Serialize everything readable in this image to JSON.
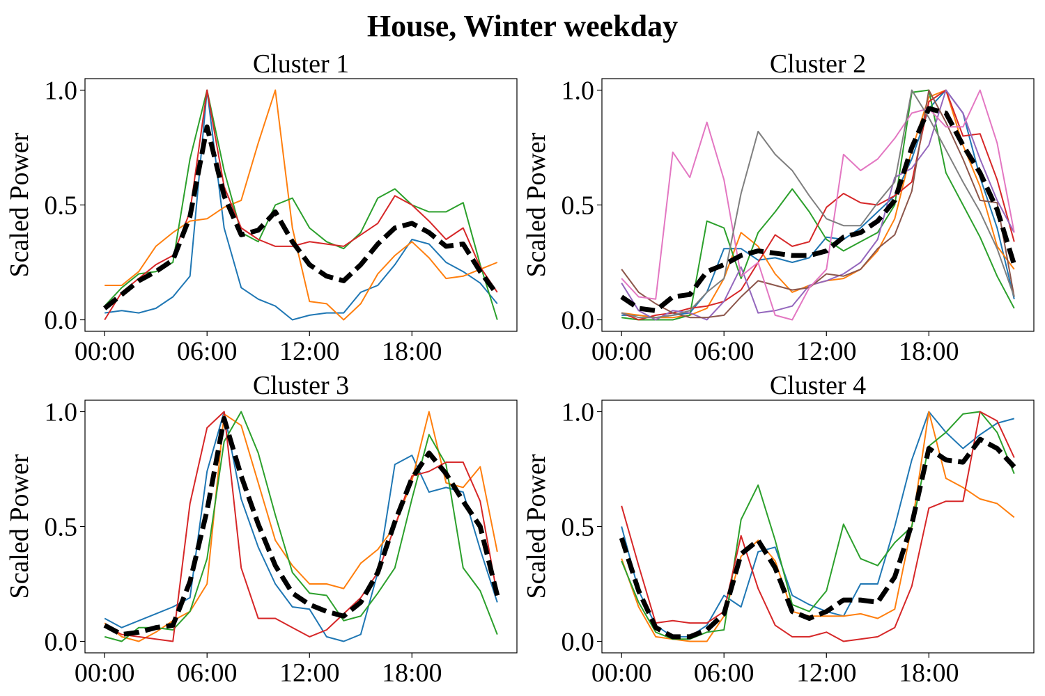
{
  "suptitle": "House, Winter weekday",
  "colors": {
    "series": [
      "#1f77b4",
      "#ff7f0e",
      "#2ca02c",
      "#d62728",
      "#9467bd",
      "#8c564b",
      "#e377c2",
      "#7f7f7f"
    ],
    "mean": "#000000"
  },
  "chart_data": [
    {
      "type": "line",
      "title": "Cluster 1",
      "ylabel": "Scaled Power",
      "xlabel": "",
      "x_tick_labels": [
        "00:00",
        "06:00",
        "12:00",
        "18:00"
      ],
      "x_tick_hours": [
        0,
        6,
        12,
        18
      ],
      "y_ticks": [
        "0.0",
        "0.5",
        "1.0"
      ],
      "xlim": [
        -1.15,
        24.15
      ],
      "ylim": [
        -0.05,
        1.05
      ],
      "x": [
        0,
        1,
        2,
        3,
        4,
        5,
        6,
        7,
        8,
        9,
        10,
        11,
        12,
        13,
        14,
        15,
        16,
        17,
        18,
        19,
        20,
        21,
        22,
        23
      ],
      "series": [
        {
          "values": [
            0.03,
            0.04,
            0.03,
            0.05,
            0.1,
            0.19,
            1.0,
            0.4,
            0.14,
            0.09,
            0.06,
            0.0,
            0.02,
            0.03,
            0.03,
            0.12,
            0.15,
            0.24,
            0.35,
            0.33,
            0.25,
            0.21,
            0.16,
            0.07
          ]
        },
        {
          "values": [
            0.15,
            0.15,
            0.21,
            0.32,
            0.38,
            0.43,
            0.44,
            0.49,
            0.52,
            0.77,
            1.0,
            0.4,
            0.08,
            0.07,
            0.0,
            0.07,
            0.2,
            0.28,
            0.34,
            0.27,
            0.18,
            0.19,
            0.22,
            0.25
          ]
        },
        {
          "values": [
            0.06,
            0.14,
            0.2,
            0.21,
            0.25,
            0.7,
            1.0,
            0.65,
            0.38,
            0.34,
            0.5,
            0.53,
            0.4,
            0.34,
            0.31,
            0.38,
            0.53,
            0.57,
            0.5,
            0.47,
            0.47,
            0.51,
            0.24,
            0.0
          ]
        },
        {
          "values": [
            0.0,
            0.12,
            0.18,
            0.24,
            0.28,
            0.47,
            1.0,
            0.58,
            0.4,
            0.35,
            0.32,
            0.32,
            0.34,
            0.33,
            0.32,
            0.37,
            0.42,
            0.54,
            0.5,
            0.43,
            0.35,
            0.4,
            0.23,
            0.12
          ]
        }
      ],
      "mean": [
        0.05,
        0.11,
        0.17,
        0.21,
        0.26,
        0.45,
        0.84,
        0.54,
        0.37,
        0.39,
        0.47,
        0.34,
        0.24,
        0.19,
        0.17,
        0.24,
        0.33,
        0.4,
        0.42,
        0.38,
        0.32,
        0.33,
        0.21,
        0.11
      ]
    },
    {
      "type": "line",
      "title": "Cluster 2",
      "ylabel": "Scaled Power",
      "xlabel": "",
      "x_tick_labels": [
        "00:00",
        "06:00",
        "12:00",
        "18:00"
      ],
      "x_tick_hours": [
        0,
        6,
        12,
        18
      ],
      "y_ticks": [
        "0.0",
        "0.5",
        "1.0"
      ],
      "xlim": [
        -1.15,
        24.15
      ],
      "ylim": [
        -0.05,
        1.05
      ],
      "x": [
        0,
        1,
        2,
        3,
        4,
        5,
        6,
        7,
        8,
        9,
        10,
        11,
        12,
        13,
        14,
        15,
        16,
        17,
        18,
        19,
        20,
        21,
        22,
        23
      ],
      "series": [
        {
          "values": [
            0.02,
            0.02,
            0.01,
            0.02,
            0.03,
            0.12,
            0.31,
            0.31,
            0.26,
            0.27,
            0.25,
            0.27,
            0.36,
            0.35,
            0.4,
            0.47,
            0.54,
            0.7,
            0.92,
            1.0,
            0.9,
            0.62,
            0.4,
            0.09
          ]
        },
        {
          "values": [
            0.03,
            0.02,
            0.01,
            0.01,
            0.02,
            0.05,
            0.18,
            0.38,
            0.32,
            0.2,
            0.12,
            0.15,
            0.17,
            0.18,
            0.22,
            0.3,
            0.44,
            0.74,
            0.97,
            1.0,
            0.76,
            0.58,
            0.32,
            0.22
          ]
        },
        {
          "values": [
            0.01,
            0.0,
            0.0,
            0.0,
            0.02,
            0.43,
            0.4,
            0.18,
            0.38,
            0.47,
            0.57,
            0.47,
            0.35,
            0.3,
            0.34,
            0.38,
            0.5,
            0.99,
            1.0,
            0.64,
            0.5,
            0.36,
            0.19,
            0.05
          ]
        },
        {
          "values": [
            0.03,
            0.0,
            0.02,
            0.03,
            0.05,
            0.06,
            0.08,
            0.13,
            0.25,
            0.37,
            0.32,
            0.34,
            0.49,
            0.55,
            0.51,
            0.5,
            0.54,
            0.6,
            0.95,
            1.0,
            0.8,
            0.81,
            0.61,
            0.34
          ]
        },
        {
          "values": [
            0.16,
            0.04,
            0.0,
            0.04,
            0.03,
            0.0,
            0.08,
            0.23,
            0.03,
            0.04,
            0.06,
            0.15,
            0.17,
            0.2,
            0.25,
            0.35,
            0.62,
            0.66,
            0.76,
            1.0,
            0.9,
            0.7,
            0.52,
            0.38
          ]
        },
        {
          "values": [
            0.22,
            0.12,
            0.07,
            0.03,
            0.01,
            0.01,
            0.02,
            0.1,
            0.17,
            0.15,
            0.13,
            0.14,
            0.2,
            0.19,
            0.22,
            0.31,
            0.37,
            0.56,
            1.0,
            0.86,
            0.7,
            0.52,
            0.51,
            0.1
          ]
        },
        {
          "values": [
            0.18,
            0.1,
            0.09,
            0.73,
            0.62,
            0.86,
            0.61,
            0.19,
            0.25,
            0.02,
            0.0,
            0.14,
            0.22,
            0.72,
            0.65,
            0.7,
            0.79,
            0.9,
            0.92,
            0.84,
            0.84,
            1.0,
            0.77,
            0.38
          ]
        },
        {
          "values": [
            0.03,
            0.01,
            0.01,
            0.02,
            0.04,
            0.12,
            0.18,
            0.55,
            0.82,
            0.72,
            0.65,
            0.54,
            0.44,
            0.41,
            0.41,
            0.51,
            0.6,
            1.0,
            0.88,
            0.74,
            0.6,
            0.47,
            0.31,
            0.1
          ]
        }
      ],
      "mean": [
        0.1,
        0.05,
        0.04,
        0.1,
        0.11,
        0.21,
        0.24,
        0.28,
        0.3,
        0.29,
        0.28,
        0.28,
        0.3,
        0.36,
        0.38,
        0.43,
        0.52,
        0.75,
        0.92,
        0.9,
        0.76,
        0.64,
        0.48,
        0.24
      ]
    },
    {
      "type": "line",
      "title": "Cluster 3",
      "ylabel": "Scaled Power",
      "xlabel": "",
      "x_tick_labels": [
        "00:00",
        "06:00",
        "12:00",
        "18:00"
      ],
      "x_tick_hours": [
        0,
        6,
        12,
        18
      ],
      "y_ticks": [
        "0.0",
        "0.5",
        "1.0"
      ],
      "xlim": [
        -1.15,
        24.15
      ],
      "ylim": [
        -0.05,
        1.05
      ],
      "x": [
        0,
        1,
        2,
        3,
        4,
        5,
        6,
        7,
        8,
        9,
        10,
        11,
        12,
        13,
        14,
        15,
        16,
        17,
        18,
        19,
        20,
        21,
        22,
        23
      ],
      "series": [
        {
          "values": [
            0.1,
            0.06,
            0.09,
            0.12,
            0.15,
            0.19,
            0.74,
            1.0,
            0.62,
            0.41,
            0.25,
            0.15,
            0.14,
            0.02,
            0.0,
            0.03,
            0.3,
            0.77,
            0.81,
            0.65,
            0.67,
            0.65,
            0.4,
            0.17
          ]
        },
        {
          "values": [
            0.08,
            0.02,
            0.0,
            0.04,
            0.09,
            0.13,
            0.25,
            0.99,
            0.94,
            0.69,
            0.44,
            0.33,
            0.25,
            0.25,
            0.23,
            0.34,
            0.4,
            0.5,
            0.7,
            1.0,
            0.69,
            0.67,
            0.76,
            0.39
          ]
        },
        {
          "values": [
            0.02,
            0.0,
            0.06,
            0.06,
            0.05,
            0.13,
            0.36,
            0.87,
            1.0,
            0.82,
            0.55,
            0.3,
            0.21,
            0.2,
            0.09,
            0.11,
            0.21,
            0.32,
            0.62,
            0.9,
            0.77,
            0.32,
            0.22,
            0.03
          ]
        },
        {
          "values": [
            0.07,
            0.03,
            0.02,
            0.01,
            0.0,
            0.6,
            0.93,
            1.0,
            0.32,
            0.1,
            0.1,
            0.06,
            0.02,
            0.05,
            0.12,
            0.19,
            0.3,
            0.5,
            0.72,
            0.74,
            0.78,
            0.78,
            0.61,
            0.2
          ]
        }
      ],
      "mean": [
        0.07,
        0.03,
        0.04,
        0.06,
        0.07,
        0.26,
        0.57,
        0.97,
        0.72,
        0.51,
        0.33,
        0.21,
        0.16,
        0.13,
        0.11,
        0.17,
        0.3,
        0.52,
        0.71,
        0.82,
        0.73,
        0.61,
        0.5,
        0.2
      ]
    },
    {
      "type": "line",
      "title": "Cluster 4",
      "ylabel": "Scaled Power",
      "xlabel": "",
      "x_tick_labels": [
        "00:00",
        "06:00",
        "12:00",
        "18:00"
      ],
      "x_tick_hours": [
        0,
        6,
        12,
        18
      ],
      "y_ticks": [
        "0.0",
        "0.5",
        "1.0"
      ],
      "xlim": [
        -1.15,
        24.15
      ],
      "ylim": [
        -0.05,
        1.05
      ],
      "x": [
        0,
        1,
        2,
        3,
        4,
        5,
        6,
        7,
        8,
        9,
        10,
        11,
        12,
        13,
        14,
        15,
        16,
        17,
        18,
        19,
        20,
        21,
        22,
        23
      ],
      "series": [
        {
          "values": [
            0.5,
            0.22,
            0.07,
            0.02,
            0.02,
            0.07,
            0.2,
            0.15,
            0.39,
            0.41,
            0.2,
            0.16,
            0.13,
            0.11,
            0.25,
            0.25,
            0.5,
            0.79,
            1.0,
            0.91,
            0.84,
            0.9,
            0.95,
            0.97
          ]
        },
        {
          "values": [
            0.36,
            0.15,
            0.02,
            0.01,
            0.0,
            0.0,
            0.11,
            0.37,
            0.44,
            0.35,
            0.13,
            0.11,
            0.11,
            0.11,
            0.12,
            0.1,
            0.14,
            0.5,
            1.0,
            0.71,
            0.67,
            0.62,
            0.6,
            0.54
          ]
        },
        {
          "values": [
            0.35,
            0.17,
            0.04,
            0.01,
            0.01,
            0.04,
            0.05,
            0.53,
            0.68,
            0.44,
            0.16,
            0.13,
            0.22,
            0.51,
            0.36,
            0.33,
            0.43,
            0.5,
            0.85,
            0.91,
            0.99,
            1.0,
            0.91,
            0.73
          ]
        },
        {
          "values": [
            0.59,
            0.33,
            0.08,
            0.09,
            0.08,
            0.08,
            0.13,
            0.46,
            0.23,
            0.07,
            0.02,
            0.02,
            0.04,
            0.0,
            0.01,
            0.02,
            0.06,
            0.24,
            0.58,
            0.61,
            0.61,
            1.0,
            0.96,
            0.8
          ]
        }
      ],
      "mean": [
        0.45,
        0.22,
        0.06,
        0.02,
        0.02,
        0.05,
        0.12,
        0.38,
        0.44,
        0.32,
        0.13,
        0.1,
        0.13,
        0.18,
        0.18,
        0.17,
        0.28,
        0.51,
        0.84,
        0.79,
        0.78,
        0.88,
        0.84,
        0.76
      ]
    }
  ]
}
